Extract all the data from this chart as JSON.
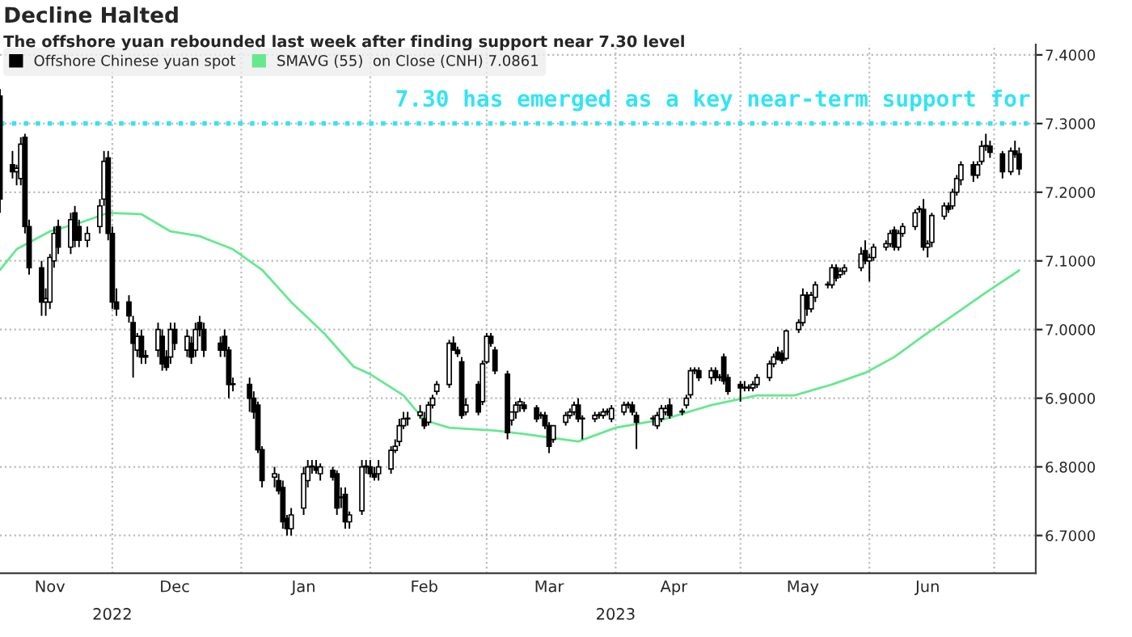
{
  "chart_data": {
    "type": "candlestick",
    "title": "Decline Halted",
    "subtitle": "The offshore yuan rebounded last week after finding support near 7.30 level",
    "series": [
      {
        "name": "Offshore Chinese yuan spot",
        "color": "#000000",
        "x": [
          "2022-11-04",
          "2022-11-07",
          "2022-11-08",
          "2022-11-09",
          "2022-11-10",
          "2022-11-11",
          "2022-11-14",
          "2022-11-15",
          "2022-11-16",
          "2022-11-17",
          "2022-11-18",
          "2022-11-21",
          "2022-11-22",
          "2022-11-23",
          "2022-11-25",
          "2022-11-28",
          "2022-11-29",
          "2022-11-30",
          "2022-12-01",
          "2022-12-02",
          "2022-12-05",
          "2022-12-06",
          "2022-12-07",
          "2022-12-08",
          "2022-12-09",
          "2022-12-12",
          "2022-12-13",
          "2022-12-14",
          "2022-12-15",
          "2022-12-16",
          "2022-12-19",
          "2022-12-20",
          "2022-12-21",
          "2022-12-22",
          "2022-12-23",
          "2022-12-27",
          "2022-12-28",
          "2022-12-29",
          "2022-12-30",
          "2023-01-03",
          "2023-01-04",
          "2023-01-05",
          "2023-01-06",
          "2023-01-09",
          "2023-01-10",
          "2023-01-11",
          "2023-01-12",
          "2023-01-13",
          "2023-01-16",
          "2023-01-17",
          "2023-01-18",
          "2023-01-19",
          "2023-01-20",
          "2023-01-23",
          "2023-01-24",
          "2023-01-25",
          "2023-01-26",
          "2023-01-27",
          "2023-01-30",
          "2023-01-31",
          "2023-02-01",
          "2023-02-02",
          "2023-02-03",
          "2023-02-06",
          "2023-02-07",
          "2023-02-08",
          "2023-02-09",
          "2023-02-10",
          "2023-02-13",
          "2023-02-14",
          "2023-02-15",
          "2023-02-16",
          "2023-02-17",
          "2023-02-20",
          "2023-02-21",
          "2023-02-22",
          "2023-02-23",
          "2023-02-24",
          "2023-02-27",
          "2023-02-28",
          "2023-03-01",
          "2023-03-02",
          "2023-03-03",
          "2023-03-06",
          "2023-03-07",
          "2023-03-08",
          "2023-03-09",
          "2023-03-10",
          "2023-03-13",
          "2023-03-14",
          "2023-03-15",
          "2023-03-16",
          "2023-03-17",
          "2023-03-20",
          "2023-03-21",
          "2023-03-22",
          "2023-03-23",
          "2023-03-24",
          "2023-03-27",
          "2023-03-28",
          "2023-03-29",
          "2023-03-30",
          "2023-03-31",
          "2023-04-03",
          "2023-04-04",
          "2023-04-05",
          "2023-04-06",
          "2023-04-10",
          "2023-04-11",
          "2023-04-12",
          "2023-04-13",
          "2023-04-14",
          "2023-04-17",
          "2023-04-18",
          "2023-04-19",
          "2023-04-20",
          "2023-04-21",
          "2023-04-24",
          "2023-04-25",
          "2023-04-26",
          "2023-04-27",
          "2023-04-28",
          "2023-05-01",
          "2023-05-02",
          "2023-05-03",
          "2023-05-04",
          "2023-05-05",
          "2023-05-08",
          "2023-05-09",
          "2023-05-10",
          "2023-05-11",
          "2023-05-12",
          "2023-05-15",
          "2023-05-16",
          "2023-05-17",
          "2023-05-18",
          "2023-05-19",
          "2023-05-22",
          "2023-05-23",
          "2023-05-24",
          "2023-05-25",
          "2023-05-26",
          "2023-05-30",
          "2023-05-31",
          "2023-06-01",
          "2023-06-02",
          "2023-06-05",
          "2023-06-06",
          "2023-06-07",
          "2023-06-08",
          "2023-06-09",
          "2023-06-12",
          "2023-06-13",
          "2023-06-14",
          "2023-06-15",
          "2023-06-16",
          "2023-06-19",
          "2023-06-20",
          "2023-06-21",
          "2023-06-22",
          "2023-06-23",
          "2023-06-26",
          "2023-06-27",
          "2023-06-28",
          "2023-06-29",
          "2023-06-30",
          "2023-07-03",
          "2023-07-05",
          "2023-07-06",
          "2023-07-07"
        ],
        "ohlc": [
          [
            7.34,
            7.35,
            7.17,
            7.19
          ],
          [
            7.24,
            7.26,
            7.22,
            7.23
          ],
          [
            7.23,
            7.24,
            7.21,
            7.235
          ],
          [
            7.22,
            7.28,
            7.21,
            7.27
          ],
          [
            7.28,
            7.285,
            7.14,
            7.15
          ],
          [
            7.15,
            7.16,
            7.08,
            7.09
          ],
          [
            7.09,
            7.1,
            7.02,
            7.04
          ],
          [
            7.04,
            7.06,
            7.02,
            7.045
          ],
          [
            7.04,
            7.11,
            7.03,
            7.105
          ],
          [
            7.1,
            7.15,
            7.09,
            7.14
          ],
          [
            7.15,
            7.16,
            7.11,
            7.12
          ],
          [
            7.12,
            7.17,
            7.11,
            7.16
          ],
          [
            7.17,
            7.18,
            7.12,
            7.13
          ],
          [
            7.15,
            7.16,
            7.12,
            7.13
          ],
          [
            7.13,
            7.15,
            7.12,
            7.14
          ],
          [
            7.15,
            7.19,
            7.14,
            7.18
          ],
          [
            7.19,
            7.26,
            7.18,
            7.245
          ],
          [
            7.25,
            7.26,
            7.13,
            7.14
          ],
          [
            7.14,
            7.15,
            7.03,
            7.04
          ],
          [
            7.04,
            7.06,
            7.02,
            7.03
          ],
          [
            7.04,
            7.05,
            7.01,
            7.02
          ],
          [
            7.01,
            7.02,
            6.93,
            6.98
          ],
          [
            6.97,
            6.995,
            6.96,
            6.99
          ],
          [
            6.99,
            7.0,
            6.95,
            6.96
          ],
          [
            6.96,
            6.97,
            6.95,
            6.962
          ],
          [
            6.97,
            7.01,
            6.96,
            7.0
          ],
          [
            6.99,
            7.0,
            6.94,
            6.95
          ],
          [
            6.96,
            6.97,
            6.94,
            6.945
          ],
          [
            6.96,
            7.01,
            6.95,
            7.0
          ],
          [
            7.0,
            7.01,
            6.97,
            6.98
          ],
          [
            6.97,
            7.0,
            6.96,
            6.99
          ],
          [
            6.98,
            6.99,
            6.95,
            6.96
          ],
          [
            6.97,
            7.01,
            6.96,
            7.0
          ],
          [
            7.01,
            7.02,
            6.99,
            7.0
          ],
          [
            7.0,
            7.01,
            6.96,
            6.97
          ],
          [
            6.98,
            6.99,
            6.96,
            6.97
          ],
          [
            6.99,
            7.0,
            6.96,
            6.97
          ],
          [
            6.97,
            6.975,
            6.9,
            6.92
          ],
          [
            6.92,
            6.93,
            6.91,
            6.921
          ],
          [
            6.92,
            6.93,
            6.88,
            6.9
          ],
          [
            6.9,
            6.91,
            6.87,
            6.88
          ],
          [
            6.89,
            6.895,
            6.82,
            6.825
          ],
          [
            6.825,
            6.83,
            6.77,
            6.78
          ],
          [
            6.785,
            6.8,
            6.77,
            6.79
          ],
          [
            6.78,
            6.79,
            6.76,
            6.765
          ],
          [
            6.77,
            6.78,
            6.71,
            6.72
          ],
          [
            6.725,
            6.73,
            6.7,
            6.71
          ],
          [
            6.71,
            6.74,
            6.7,
            6.73
          ],
          [
            6.74,
            6.8,
            6.73,
            6.79
          ],
          [
            6.78,
            6.81,
            6.77,
            6.8
          ],
          [
            6.8,
            6.81,
            6.79,
            6.801
          ],
          [
            6.8,
            6.81,
            6.79,
            6.795
          ],
          [
            6.79,
            6.805,
            6.78,
            6.8
          ],
          [
            6.795,
            6.8,
            6.78,
            6.785
          ],
          [
            6.79,
            6.795,
            6.73,
            6.74
          ],
          [
            6.755,
            6.77,
            6.74,
            6.756
          ],
          [
            6.76,
            6.77,
            6.71,
            6.72
          ],
          [
            6.72,
            6.735,
            6.71,
            6.73
          ],
          [
            6.736,
            6.81,
            6.73,
            6.8
          ],
          [
            6.8,
            6.81,
            6.79,
            6.801
          ],
          [
            6.8,
            6.81,
            6.785,
            6.79
          ],
          [
            6.79,
            6.8,
            6.78,
            6.785
          ],
          [
            6.79,
            6.81,
            6.78,
            6.8
          ],
          [
            6.797,
            6.83,
            6.79,
            6.824
          ],
          [
            6.824,
            6.84,
            6.82,
            6.83
          ],
          [
            6.837,
            6.87,
            6.83,
            6.86
          ],
          [
            6.86,
            6.88,
            6.855,
            6.87
          ],
          [
            6.87,
            6.88,
            6.86,
            6.871
          ],
          [
            6.875,
            6.89,
            6.87,
            6.88
          ],
          [
            6.87,
            6.88,
            6.855,
            6.86
          ],
          [
            6.865,
            6.895,
            6.86,
            6.89
          ],
          [
            6.89,
            6.905,
            6.885,
            6.9
          ],
          [
            6.91,
            6.925,
            6.905,
            6.92
          ],
          [
            6.92,
            6.985,
            6.915,
            6.98
          ],
          [
            6.98,
            6.99,
            6.97,
            6.97
          ],
          [
            6.97,
            6.975,
            6.96,
            6.965
          ],
          [
            6.953,
            6.96,
            6.87,
            6.875
          ],
          [
            6.88,
            6.9,
            6.875,
            6.89
          ],
          [
            6.92,
            6.925,
            6.875,
            6.88
          ],
          [
            6.895,
            6.955,
            6.89,
            6.95
          ],
          [
            6.953,
            6.995,
            6.95,
            6.99
          ],
          [
            6.99,
            6.995,
            6.975,
            6.98
          ],
          [
            6.97,
            6.975,
            6.935,
            6.94
          ],
          [
            6.935,
            6.94,
            6.84,
            6.85
          ],
          [
            6.868,
            6.88,
            6.86,
            6.88
          ],
          [
            6.88,
            6.895,
            6.87,
            6.89
          ],
          [
            6.89,
            6.9,
            6.88,
            6.895
          ],
          [
            6.89,
            6.895,
            6.88,
            6.885
          ],
          [
            6.886,
            6.89,
            6.865,
            6.87
          ],
          [
            6.875,
            6.88,
            6.87,
            6.876
          ],
          [
            6.875,
            6.88,
            6.855,
            6.86
          ],
          [
            6.86,
            6.865,
            6.82,
            6.83
          ],
          [
            6.84,
            6.86,
            6.835,
            6.86
          ],
          [
            6.865,
            6.88,
            6.86,
            6.875
          ],
          [
            6.875,
            6.885,
            6.87,
            6.88
          ],
          [
            6.88,
            6.895,
            6.875,
            6.89
          ],
          [
            6.89,
            6.9,
            6.865,
            6.87
          ],
          [
            6.87,
            6.875,
            6.84,
            6.871
          ],
          [
            6.87,
            6.88,
            6.865,
            6.875
          ],
          [
            6.875,
            6.88,
            6.87,
            6.876
          ],
          [
            6.875,
            6.885,
            6.87,
            6.88
          ],
          [
            6.88,
            6.885,
            6.875,
            6.881
          ],
          [
            6.87,
            6.89,
            6.865,
            6.885
          ],
          [
            6.88,
            6.895,
            6.875,
            6.89
          ],
          [
            6.89,
            6.895,
            6.885,
            6.891
          ],
          [
            6.89,
            6.895,
            6.875,
            6.88
          ],
          [
            6.875,
            6.88,
            6.826,
            6.865
          ],
          [
            6.87,
            6.875,
            6.86,
            6.871
          ],
          [
            6.86,
            6.88,
            6.855,
            6.875
          ],
          [
            6.87,
            6.89,
            6.865,
            6.885
          ],
          [
            6.88,
            6.89,
            6.875,
            6.885
          ],
          [
            6.89,
            6.9,
            6.87,
            6.875
          ],
          [
            6.88,
            6.885,
            6.875,
            6.881
          ],
          [
            6.89,
            6.905,
            6.885,
            6.9
          ],
          [
            6.905,
            6.945,
            6.9,
            6.94
          ],
          [
            6.94,
            6.945,
            6.935,
            6.941
          ],
          [
            6.94,
            6.945,
            6.925,
            6.93
          ],
          [
            6.93,
            6.945,
            6.92,
            6.94
          ],
          [
            6.94,
            6.945,
            6.925,
            6.93
          ],
          [
            6.93,
            6.935,
            6.925,
            6.931
          ],
          [
            6.96,
            6.965,
            6.92,
            6.925
          ],
          [
            6.93,
            6.935,
            6.905,
            6.91
          ],
          [
            6.92,
            6.925,
            6.895,
            6.915
          ],
          [
            6.915,
            6.925,
            6.91,
            6.916
          ],
          [
            6.915,
            6.92,
            6.91,
            6.916
          ],
          [
            6.915,
            6.925,
            6.91,
            6.92
          ],
          [
            6.92,
            6.935,
            6.915,
            6.93
          ],
          [
            6.93,
            6.955,
            6.925,
            6.95
          ],
          [
            6.95,
            6.965,
            6.945,
            6.96
          ],
          [
            6.967,
            6.975,
            6.955,
            6.957
          ],
          [
            6.965,
            6.97,
            6.95,
            6.955
          ],
          [
            6.958,
            7.0,
            6.955,
            6.998
          ],
          [
            7.0,
            7.015,
            6.995,
            7.01
          ],
          [
            7.01,
            7.06,
            7.005,
            7.05
          ],
          [
            7.05,
            7.055,
            7.02,
            7.03
          ],
          [
            7.03,
            7.055,
            7.025,
            7.05
          ],
          [
            7.047,
            7.07,
            7.04,
            7.065
          ],
          [
            7.065,
            7.07,
            7.06,
            7.066
          ],
          [
            7.065,
            7.095,
            7.06,
            7.09
          ],
          [
            7.09,
            7.095,
            7.07,
            7.075
          ],
          [
            7.08,
            7.09,
            7.075,
            7.085
          ],
          [
            7.085,
            7.095,
            7.08,
            7.09
          ],
          [
            7.09,
            7.12,
            7.085,
            7.11
          ],
          [
            7.115,
            7.13,
            7.095,
            7.1
          ],
          [
            7.1,
            7.11,
            7.07,
            7.105
          ],
          [
            7.105,
            7.125,
            7.1,
            7.12
          ],
          [
            7.12,
            7.13,
            7.115,
            7.125
          ],
          [
            7.125,
            7.145,
            7.12,
            7.14
          ],
          [
            7.145,
            7.15,
            7.115,
            7.12
          ],
          [
            7.12,
            7.145,
            7.115,
            7.14
          ],
          [
            7.14,
            7.155,
            7.135,
            7.15
          ],
          [
            7.15,
            7.175,
            7.145,
            7.17
          ],
          [
            7.175,
            7.18,
            7.17,
            7.176
          ],
          [
            7.175,
            7.19,
            7.115,
            7.12
          ],
          [
            7.12,
            7.13,
            7.105,
            7.125
          ],
          [
            7.127,
            7.17,
            7.12,
            7.166
          ],
          [
            7.165,
            7.185,
            7.16,
            7.18
          ],
          [
            7.18,
            7.185,
            7.17,
            7.175
          ],
          [
            7.18,
            7.205,
            7.175,
            7.2
          ],
          [
            7.2,
            7.225,
            7.195,
            7.22
          ],
          [
            7.218,
            7.245,
            7.21,
            7.24
          ],
          [
            7.24,
            7.245,
            7.215,
            7.225
          ],
          [
            7.225,
            7.245,
            7.22,
            7.24
          ],
          [
            7.245,
            7.275,
            7.24,
            7.267
          ],
          [
            7.267,
            7.285,
            7.26,
            7.268
          ],
          [
            7.267,
            7.275,
            7.25,
            7.258
          ],
          [
            7.256,
            7.26,
            7.22,
            7.23
          ],
          [
            7.23,
            7.265,
            7.225,
            7.26
          ],
          [
            7.26,
            7.275,
            7.25,
            7.255
          ],
          [
            7.256,
            7.265,
            7.225,
            7.234
          ]
        ]
      },
      {
        "name": "SMAVG (55)  on Close (CNH) 7.0861",
        "type": "line",
        "color": "#66e890",
        "x": [
          "2022-11-04",
          "2022-11-08",
          "2022-11-16",
          "2022-11-23",
          "2022-11-30",
          "2022-12-08",
          "2022-12-15",
          "2022-12-22",
          "2022-12-30",
          "2023-01-06",
          "2023-01-13",
          "2023-01-21",
          "2023-01-28",
          "2023-02-01",
          "2023-02-09",
          "2023-02-14",
          "2023-02-20",
          "2023-03-03",
          "2023-03-10",
          "2023-03-18",
          "2023-03-23",
          "2023-04-01",
          "2023-04-13",
          "2023-04-24",
          "2023-05-05",
          "2023-05-14",
          "2023-05-23",
          "2023-05-31",
          "2023-06-07",
          "2023-06-14",
          "2023-06-21",
          "2023-06-29",
          "2023-07-07"
        ],
        "values": [
          7.087,
          7.117,
          7.143,
          7.155,
          7.17,
          7.168,
          7.143,
          7.136,
          7.117,
          7.087,
          7.04,
          6.994,
          6.946,
          6.935,
          6.904,
          6.868,
          6.857,
          6.853,
          6.848,
          6.841,
          6.837,
          6.857,
          6.87,
          6.89,
          6.904,
          6.904,
          6.92,
          6.937,
          6.96,
          6.991,
          7.02,
          7.054,
          7.0861
        ]
      }
    ],
    "xlim": [
      "2022-11-04",
      "2023-07-11"
    ],
    "xticks": [
      {
        "value": "2022-12-01",
        "label": null
      },
      {
        "value": "2023-01-01",
        "label": null
      },
      {
        "value": "2023-02-01",
        "label": null
      },
      {
        "value": "2023-03-01",
        "label": null
      },
      {
        "value": "2023-04-01",
        "label": null
      },
      {
        "value": "2023-05-01",
        "label": null
      },
      {
        "value": "2023-06-01",
        "label": null
      },
      {
        "value": "2023-07-01",
        "label": null
      },
      {
        "value": "2022-11-16",
        "label": "Nov"
      },
      {
        "value": "2022-12-16",
        "label": "Dec"
      },
      {
        "value": "2023-01-16",
        "label": "Jan"
      },
      {
        "value": "2023-02-14",
        "label": "Feb"
      },
      {
        "value": "2023-03-16",
        "label": "Mar"
      },
      {
        "value": "2023-04-15",
        "label": "Apr"
      },
      {
        "value": "2023-05-16",
        "label": "May"
      },
      {
        "value": "2023-06-15",
        "label": "Jun"
      }
    ],
    "ylim": [
      6.645,
      7.415
    ],
    "yticks": [
      {
        "value": 6.7,
        "label": "6.7000"
      },
      {
        "value": 6.8,
        "label": "6.8000"
      },
      {
        "value": 6.9,
        "label": "6.9000"
      },
      {
        "value": 7.0,
        "label": "7.0000"
      },
      {
        "value": 7.1,
        "label": "7.1000"
      },
      {
        "value": 7.2,
        "label": "7.2000"
      },
      {
        "value": 7.3,
        "label": "7.3000"
      },
      {
        "value": 7.4,
        "label": "7.4000"
      }
    ],
    "ref_lines": [
      {
        "axis": "y",
        "value": 7.3,
        "label": "7.30 has emerged as a key near-term support for",
        "color": "#33e4f2",
        "line_style": "dotted"
      }
    ],
    "annotations": [
      "2022",
      "2023"
    ],
    "grid": true,
    "legend": "top left"
  }
}
